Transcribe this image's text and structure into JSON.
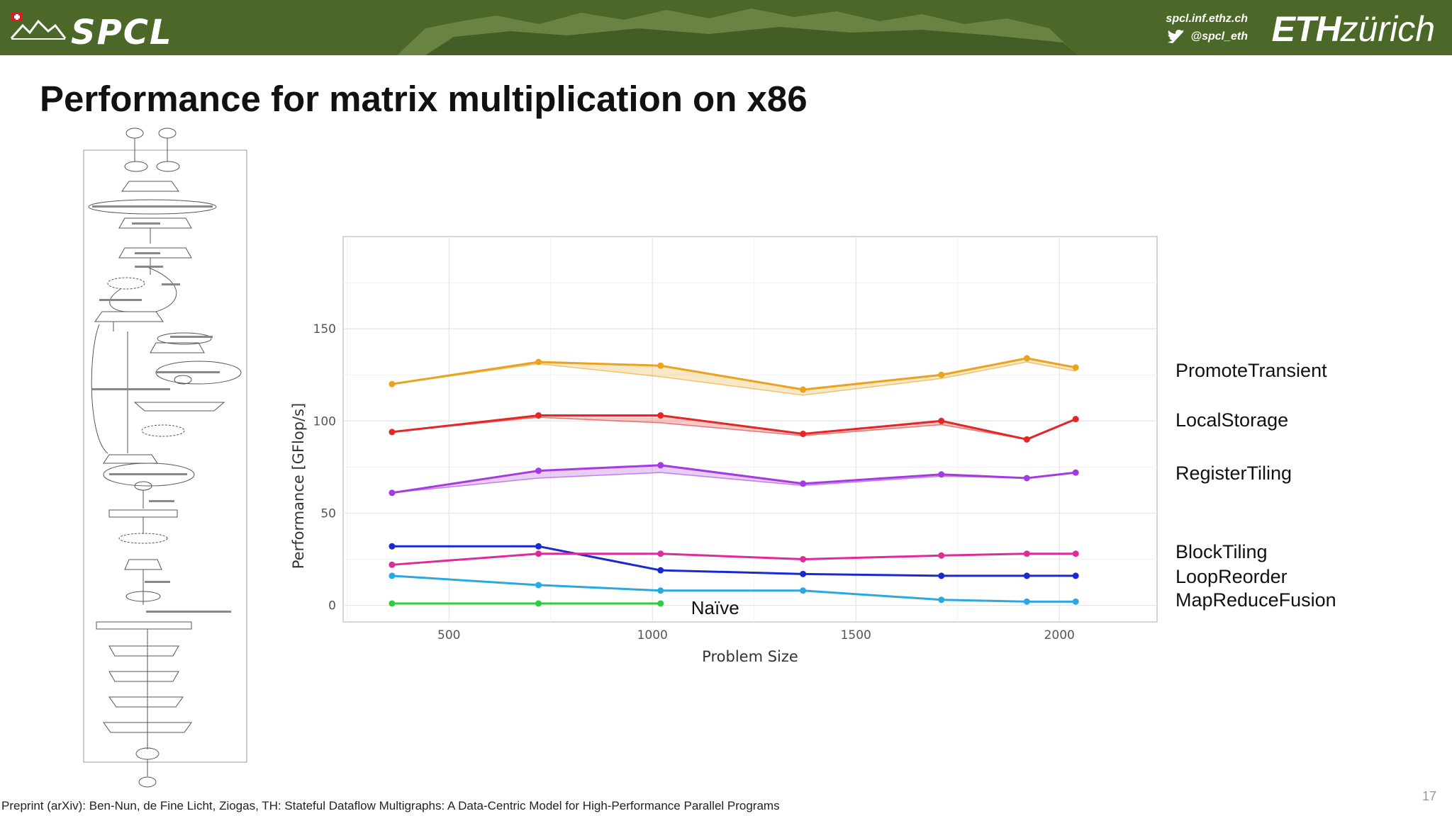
{
  "header": {
    "logo_text": "SPCL",
    "site": "spcl.inf.ethz.ch",
    "twitter": "@spcl_eth",
    "eth_bold": "ETH",
    "eth_light": "zürich",
    "colors": {
      "header_bg": "#4f6a2c"
    }
  },
  "slide": {
    "title": "Performance for matrix multiplication on x86",
    "footer": "Preprint (arXiv): Ben-Nun, de Fine Licht, Ziogas, TH: Stateful Dataflow Multigraphs: A Data-Centric Model for High-Performance Parallel Programs",
    "page_number": "17"
  },
  "chart_data": {
    "type": "line",
    "title": "",
    "xlabel": "Problem Size",
    "ylabel": "Performance [GFlop/s]",
    "xlim": [
      240,
      2240
    ],
    "ylim": [
      -9,
      200
    ],
    "xticks": [
      500,
      1000,
      1500,
      2000
    ],
    "yticks": [
      0,
      50,
      100,
      150
    ],
    "grid": true,
    "annotation": "Naïve",
    "series": [
      {
        "name": "PromoteTransient",
        "color": "#e8a321",
        "x": [
          360,
          720,
          1020,
          1370,
          1710,
          1920,
          2040
        ],
        "y": [
          120,
          132,
          130,
          117,
          125,
          134,
          129
        ],
        "lower": [
          120,
          131,
          124,
          114,
          123,
          132,
          127
        ]
      },
      {
        "name": "LocalStorage",
        "color": "#e32626",
        "x": [
          360,
          720,
          1020,
          1370,
          1710,
          1920,
          2040
        ],
        "y": [
          94,
          103,
          103,
          93,
          100,
          90,
          101
        ],
        "lower": [
          94,
          102,
          99,
          92,
          98,
          90,
          101
        ]
      },
      {
        "name": "RegisterTiling",
        "color": "#a43be0",
        "x": [
          360,
          720,
          1020,
          1370,
          1710,
          1920,
          2040
        ],
        "y": [
          61,
          73,
          76,
          66,
          71,
          69,
          72
        ],
        "lower": [
          61,
          69,
          72,
          65,
          70,
          69,
          72
        ]
      },
      {
        "name": "BlockTiling",
        "color": "#1a2ad0",
        "x": [
          360,
          720,
          1020,
          1370,
          1710,
          1920,
          2040
        ],
        "y": [
          32,
          32,
          19,
          17,
          16,
          16,
          16
        ]
      },
      {
        "name": "LoopReorder",
        "color": "#e02a9a",
        "x": [
          360,
          720,
          1020,
          1370,
          1710,
          1920,
          2040
        ],
        "y": [
          22,
          28,
          28,
          25,
          27,
          28,
          28
        ]
      },
      {
        "name": "MapReduceFusion",
        "color": "#2aa8e0",
        "x": [
          360,
          720,
          1020,
          1370,
          1710,
          1920,
          2040
        ],
        "y": [
          16,
          11,
          8,
          8,
          3,
          2,
          2
        ]
      },
      {
        "name": "Naïve",
        "color": "#2ecc40",
        "x": [
          360,
          720,
          1020
        ],
        "y": [
          1,
          1,
          1
        ]
      }
    ]
  }
}
